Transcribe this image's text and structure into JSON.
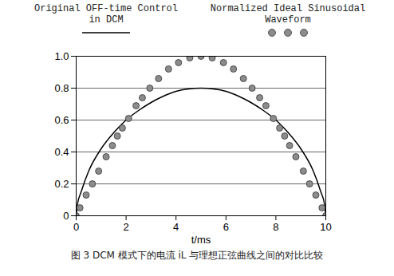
{
  "chart_data": {
    "type": "line",
    "title": null,
    "caption": "图 3 DCM 模式下的电流 iL 与理想正弦曲线之间的对比比较",
    "x_label": "t/ms",
    "xlim": [
      0,
      10
    ],
    "xticks": [
      0,
      2,
      4,
      6,
      8,
      10
    ],
    "ylim": [
      0,
      1
    ],
    "yticks": [
      0,
      0.2,
      0.4,
      0.6,
      0.8,
      {
        "value": 1,
        "label": "1.0"
      }
    ],
    "grid": true,
    "legend": "top",
    "series": [
      {
        "name": "Original OFF-time Control in DCM",
        "type": "line",
        "color": "#000000",
        "line_style": "solid",
        "x": [
          0,
          0.05,
          0.2,
          0.5,
          1,
          1.5,
          2,
          2.5,
          3,
          3.5,
          4,
          4.5,
          5,
          5.5,
          6,
          6.5,
          7,
          7.5,
          8,
          8.5,
          9,
          9.5,
          9.8,
          9.95,
          10
        ],
        "values": [
          0,
          0.07,
          0.15,
          0.28,
          0.42,
          0.52,
          0.6,
          0.66,
          0.71,
          0.75,
          0.78,
          0.795,
          0.8,
          0.795,
          0.78,
          0.75,
          0.71,
          0.66,
          0.6,
          0.52,
          0.42,
          0.28,
          0.15,
          0.07,
          0
        ]
      },
      {
        "name": "Normalized Ideal Sinusoidal Waveform",
        "type": "scatter",
        "color": "#8c8c8c",
        "marker": "circle",
        "x": [
          0,
          0.15,
          0.4,
          0.65,
          0.9,
          1.2,
          1.45,
          1.65,
          1.85,
          2.1,
          2.4,
          2.65,
          2.95,
          3.3,
          3.7,
          4.1,
          4.55,
          5,
          5.45,
          5.9,
          6.3,
          6.7,
          7.05,
          7.35,
          7.6,
          7.9,
          8.15,
          8.35,
          8.55,
          8.8,
          9.1,
          9.35,
          9.6,
          9.85,
          10
        ],
        "values": [
          0,
          0.05,
          0.13,
          0.2,
          0.28,
          0.37,
          0.44,
          0.5,
          0.55,
          0.61,
          0.69,
          0.74,
          0.8,
          0.86,
          0.92,
          0.96,
          0.99,
          1,
          0.99,
          0.96,
          0.92,
          0.86,
          0.8,
          0.74,
          0.69,
          0.61,
          0.55,
          0.5,
          0.44,
          0.37,
          0.28,
          0.2,
          0.13,
          0.05,
          0
        ]
      }
    ]
  }
}
